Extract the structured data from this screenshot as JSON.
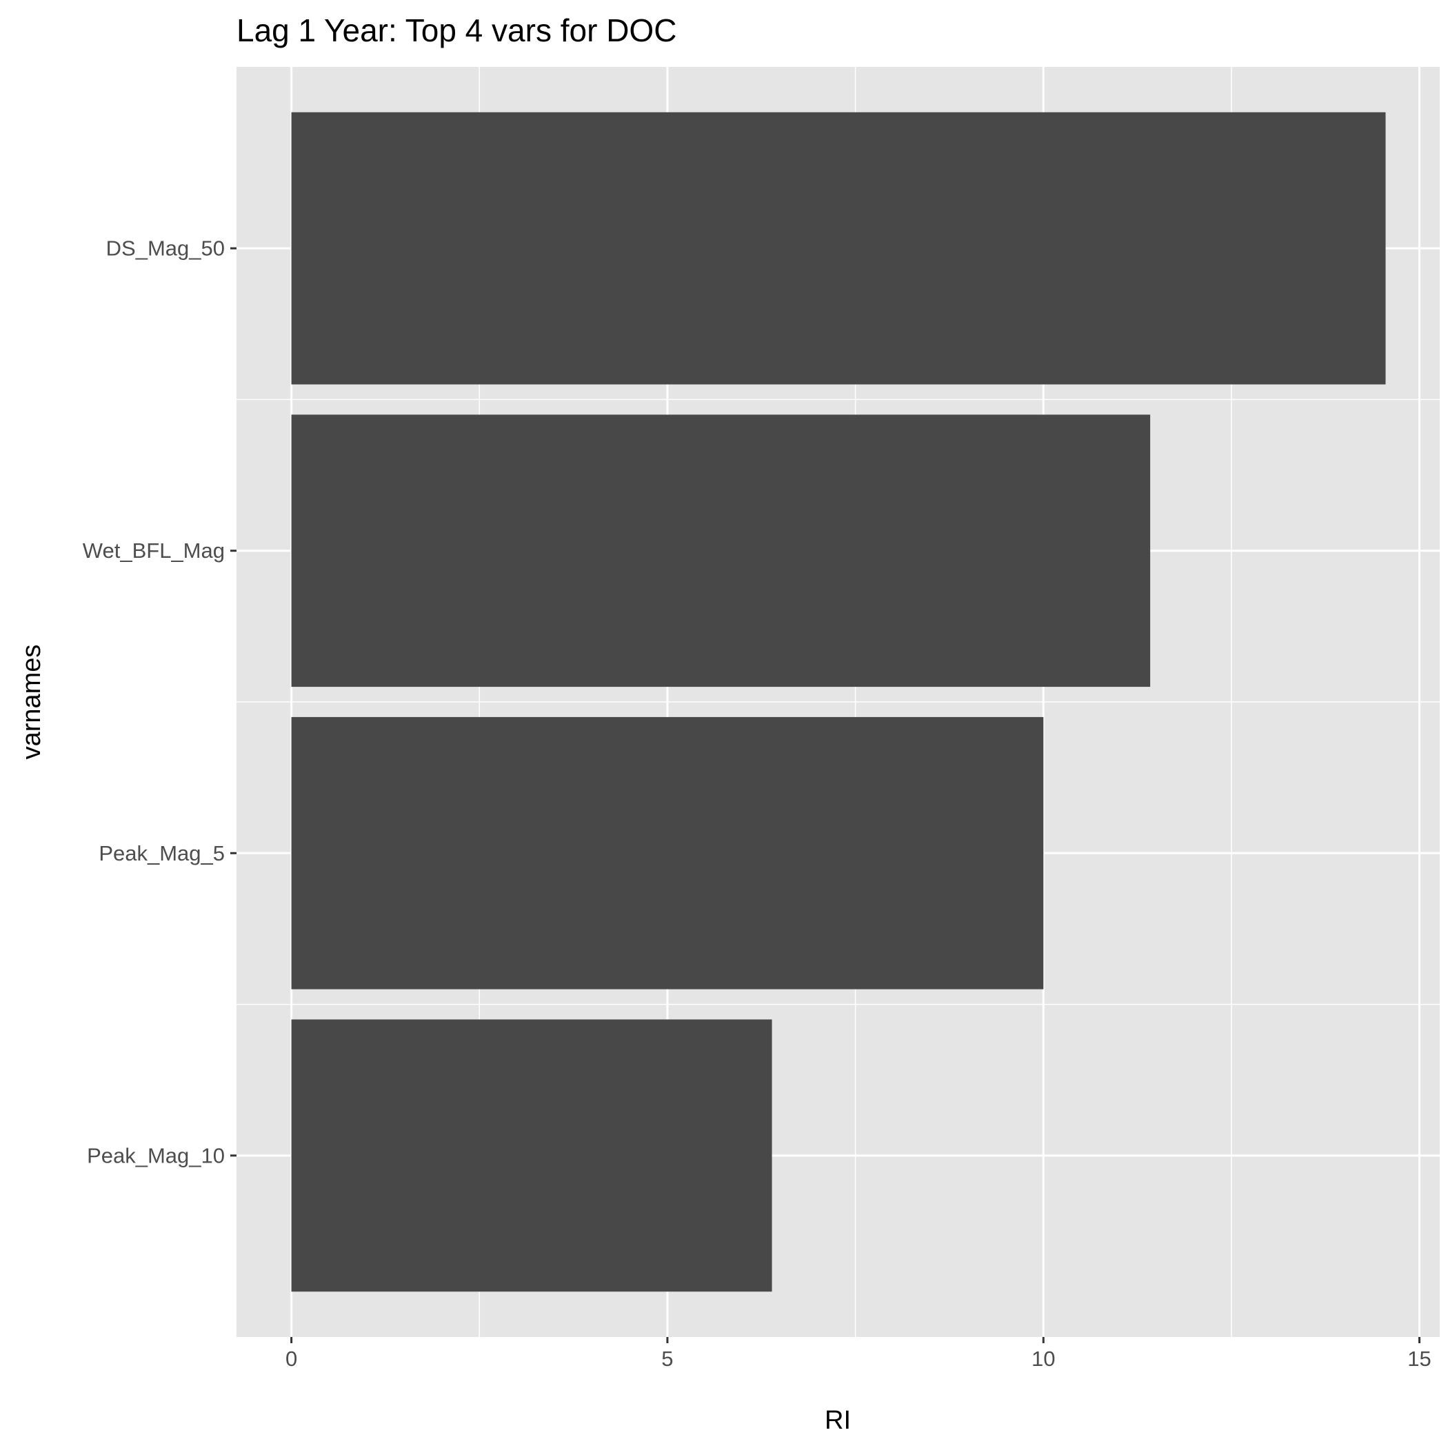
{
  "chart_data": {
    "type": "bar",
    "orientation": "horizontal",
    "title": "Lag 1 Year: Top 4 vars for DOC",
    "xlabel": "RI",
    "ylabel": "varnames",
    "categories": [
      "DS_Mag_50",
      "Wet_BFL_Mag",
      "Peak_Mag_5",
      "Peak_Mag_10"
    ],
    "values": [
      14.55,
      11.42,
      10.0,
      6.39
    ],
    "xlim": [
      -0.73,
      15.27
    ],
    "xticks": [
      0,
      5,
      10,
      15
    ],
    "xtick_labels": [
      "0",
      "5",
      "10",
      "15"
    ],
    "grid": true,
    "colors": {
      "bar": "#484848",
      "panel": "#e5e5e5",
      "grid": "#ffffff",
      "tick_text": "#4d4d4d"
    }
  }
}
